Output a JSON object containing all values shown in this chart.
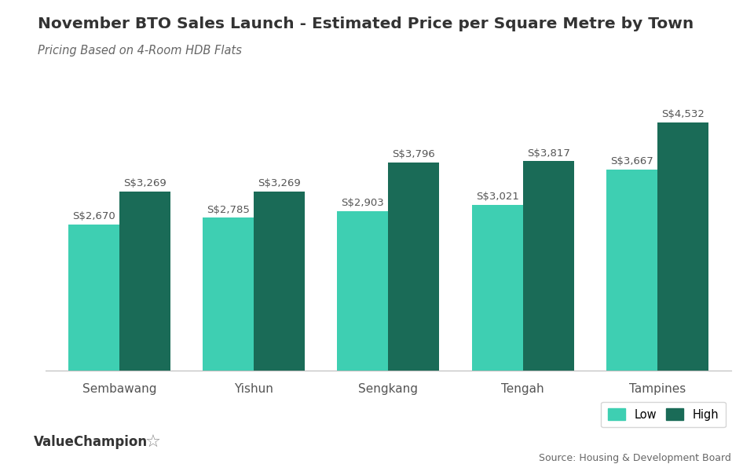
{
  "title": "November BTO Sales Launch - Estimated Price per Square Metre by Town",
  "subtitle": "Pricing Based on 4-Room HDB Flats",
  "towns": [
    "Sembawang",
    "Yishun",
    "Sengkang",
    "Tengah",
    "Tampines"
  ],
  "low_values": [
    2670,
    2785,
    2903,
    3021,
    3667
  ],
  "high_values": [
    3269,
    3269,
    3796,
    3817,
    4532
  ],
  "low_labels": [
    "S$2,670",
    "S$2,785",
    "S$2,903",
    "S$3,021",
    "S$3,667"
  ],
  "high_labels": [
    "S$3,269",
    "S$3,269",
    "S$3,796",
    "S$3,817",
    "S$4,532"
  ],
  "color_low": "#3ECFB2",
  "color_high": "#1A6B57",
  "bar_width": 0.38,
  "ylim": [
    0,
    5200
  ],
  "source_text": "Source: Housing & Development Board",
  "watermark": "ValueChampion",
  "background_color": "#ffffff",
  "title_fontsize": 14.5,
  "subtitle_fontsize": 10.5,
  "axis_label_fontsize": 11,
  "bar_label_fontsize": 9.5,
  "legend_fontsize": 10.5,
  "title_color": "#333333",
  "subtitle_color": "#666666",
  "label_color": "#555555",
  "axis_tick_color": "#555555"
}
